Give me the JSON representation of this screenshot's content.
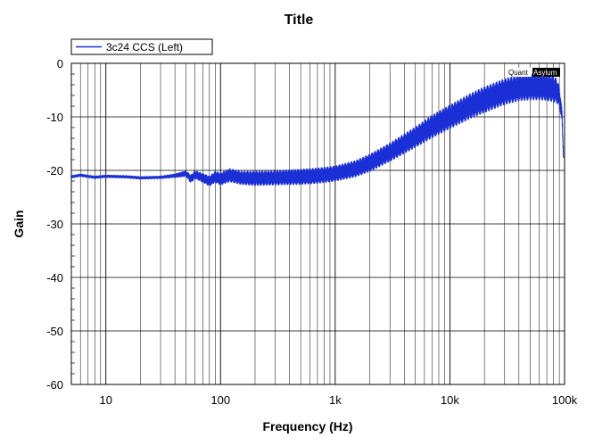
{
  "chart_data": {
    "type": "line",
    "title": "Title",
    "xlabel": "Frequency (Hz)",
    "ylabel": "Gain",
    "xscale": "log",
    "xlim": [
      5,
      100000
    ],
    "ylim": [
      -60,
      0
    ],
    "x_ticks": [
      10,
      100,
      1000,
      10000,
      100000
    ],
    "x_tick_labels": [
      "10",
      "100",
      "1k",
      "10k",
      "100k"
    ],
    "y_ticks": [
      0,
      -10,
      -20,
      -30,
      -40,
      -50,
      -60
    ],
    "y_tick_labels": [
      "0",
      "-10",
      "-20",
      "-30",
      "-40",
      "-50",
      "-60"
    ],
    "grid": true,
    "legend_position": "top-left",
    "watermark": {
      "left": "Quant",
      "right": "Asylum"
    },
    "series": [
      {
        "name": "3c24 CCS (Left)",
        "color": "#1a2fd6",
        "x": [
          5,
          6,
          8,
          10,
          15,
          20,
          30,
          40,
          50,
          55,
          60,
          70,
          80,
          90,
          100,
          120,
          150,
          200,
          300,
          500,
          700,
          1000,
          1500,
          2000,
          3000,
          5000,
          7000,
          10000,
          15000,
          20000,
          30000,
          40000,
          50000,
          60000,
          70000,
          80000,
          85000,
          90000,
          95000,
          98000
        ],
        "y": [
          -21.2,
          -20.9,
          -21.3,
          -21.1,
          -21.2,
          -21.4,
          -21.3,
          -21.0,
          -20.6,
          -21.6,
          -20.8,
          -21.4,
          -22.0,
          -21.2,
          -21.6,
          -20.9,
          -21.4,
          -21.5,
          -21.4,
          -21.2,
          -21.0,
          -20.6,
          -19.7,
          -18.6,
          -16.6,
          -13.8,
          -11.8,
          -10.0,
          -8.0,
          -6.8,
          -5.3,
          -4.6,
          -4.4,
          -4.4,
          -4.5,
          -4.8,
          -5.1,
          -6.2,
          -9.8,
          -18.0
        ],
        "band_width": [
          0.3,
          0.3,
          0.3,
          0.3,
          0.3,
          0.3,
          0.3,
          0.4,
          0.6,
          0.8,
          0.8,
          0.9,
          1.0,
          1.1,
          1.2,
          1.3,
          1.3,
          1.4,
          1.4,
          1.5,
          1.5,
          1.5,
          1.6,
          1.7,
          1.8,
          2.0,
          2.2,
          2.3,
          2.4,
          2.5,
          2.5,
          2.5,
          2.5,
          2.5,
          2.5,
          2.5,
          2.3,
          2.0,
          1.2,
          0.4
        ]
      }
    ]
  }
}
